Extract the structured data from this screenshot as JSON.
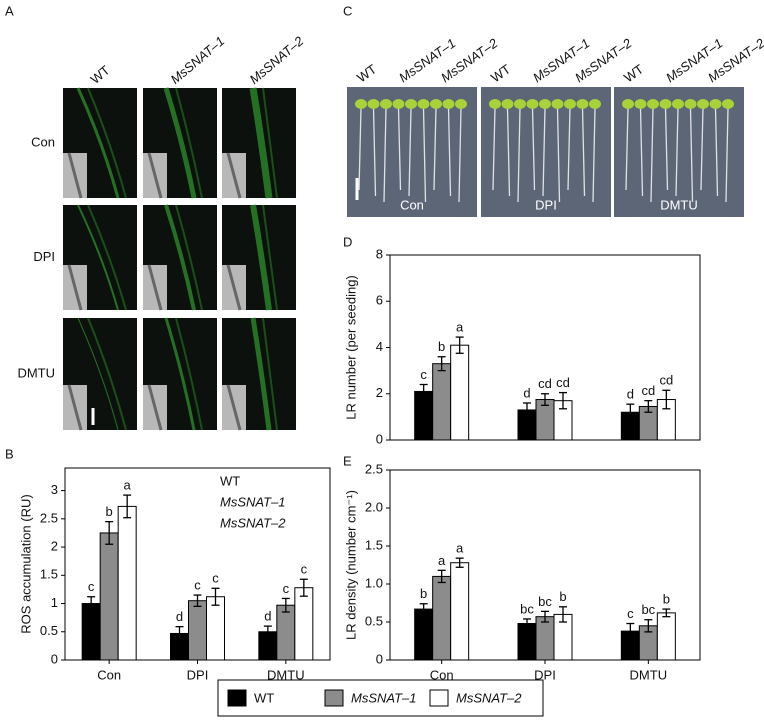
{
  "panel_labels": [
    "A",
    "B",
    "C",
    "D",
    "E"
  ],
  "panel_a": {
    "columns": [
      "WT",
      "MsSNAT–1",
      "MsSNAT–2"
    ],
    "rows": [
      "Con",
      "DPI",
      "DMTU"
    ]
  },
  "panel_c": {
    "groups": [
      [
        "WT",
        "MsSNAT–1",
        "MsSNAT–2"
      ],
      [
        "WT",
        "MsSNAT–1",
        "MsSNAT–2"
      ],
      [
        "WT",
        "MsSNAT–1",
        "MsSNAT–2"
      ]
    ],
    "labels": [
      "Con",
      "DPI",
      "DMTU"
    ]
  },
  "chart_data": [
    {
      "type": "bar",
      "ylabel": "ROS accumulation (RU)",
      "categories": [
        "Con",
        "DPI",
        "DMTU"
      ],
      "ylim": [
        0,
        3.4
      ],
      "yticks": [
        0,
        0.5,
        1,
        1.5,
        2,
        2.5,
        3
      ],
      "legend": "upper right",
      "series": [
        {
          "name": "WT",
          "color": "#000000",
          "values": [
            1.0,
            0.47,
            0.5
          ],
          "errors": [
            0.12,
            0.12,
            0.1
          ],
          "letters": [
            "c",
            "d",
            "d"
          ]
        },
        {
          "name": "MsSNAT–1",
          "color": "#8c8c8c",
          "values": [
            2.25,
            1.05,
            0.97
          ],
          "errors": [
            0.2,
            0.1,
            0.12
          ],
          "letters": [
            "b",
            "c",
            "c"
          ]
        },
        {
          "name": "MsSNAT–2",
          "color": "#ffffff",
          "values": [
            2.72,
            1.12,
            1.28
          ],
          "errors": [
            0.2,
            0.15,
            0.15
          ],
          "letters": [
            "a",
            "c",
            "c"
          ]
        }
      ]
    },
    {
      "type": "bar",
      "ylabel": "LR number (per seeding)",
      "ylim": [
        0,
        8
      ],
      "yticks": [
        0,
        2,
        4,
        6,
        8
      ],
      "series": [
        {
          "name": "WT",
          "color": "#000000",
          "values": [
            2.1,
            1.3,
            1.2
          ],
          "errors": [
            0.3,
            0.3,
            0.35
          ],
          "letters": [
            "c",
            "d",
            "d"
          ]
        },
        {
          "name": "MsSNAT–1",
          "color": "#8c8c8c",
          "values": [
            3.3,
            1.75,
            1.45
          ],
          "errors": [
            0.3,
            0.25,
            0.25
          ],
          "letters": [
            "b",
            "cd",
            "cd"
          ]
        },
        {
          "name": "MsSNAT–2",
          "color": "#ffffff",
          "values": [
            4.1,
            1.7,
            1.75
          ],
          "errors": [
            0.35,
            0.35,
            0.4
          ],
          "letters": [
            "a",
            "cd",
            "cd"
          ]
        }
      ]
    },
    {
      "type": "bar",
      "ylabel": "LR density (number cm⁻¹)",
      "categories": [
        "Con",
        "DPI",
        "DMTU"
      ],
      "ylim": [
        0,
        2.5
      ],
      "yticks": [
        0,
        0.5,
        {
          "value": 1,
          "label": "1.0"
        },
        1.5,
        {
          "value": 2,
          "label": "2.0"
        },
        2.5
      ],
      "series": [
        {
          "name": "WT",
          "color": "#000000",
          "values": [
            0.67,
            0.48,
            0.38
          ],
          "errors": [
            0.07,
            0.06,
            0.1
          ],
          "letters": [
            "b",
            "bc",
            "c"
          ]
        },
        {
          "name": "MsSNAT–1",
          "color": "#8c8c8c",
          "values": [
            1.1,
            0.57,
            0.45
          ],
          "errors": [
            0.08,
            0.07,
            0.08
          ],
          "letters": [
            "a",
            "bc",
            "bc"
          ]
        },
        {
          "name": "MsSNAT–2",
          "color": "#ffffff",
          "values": [
            1.28,
            0.6,
            0.62
          ],
          "errors": [
            0.06,
            0.1,
            0.05
          ],
          "letters": [
            "a",
            "b",
            "b"
          ]
        }
      ]
    }
  ]
}
